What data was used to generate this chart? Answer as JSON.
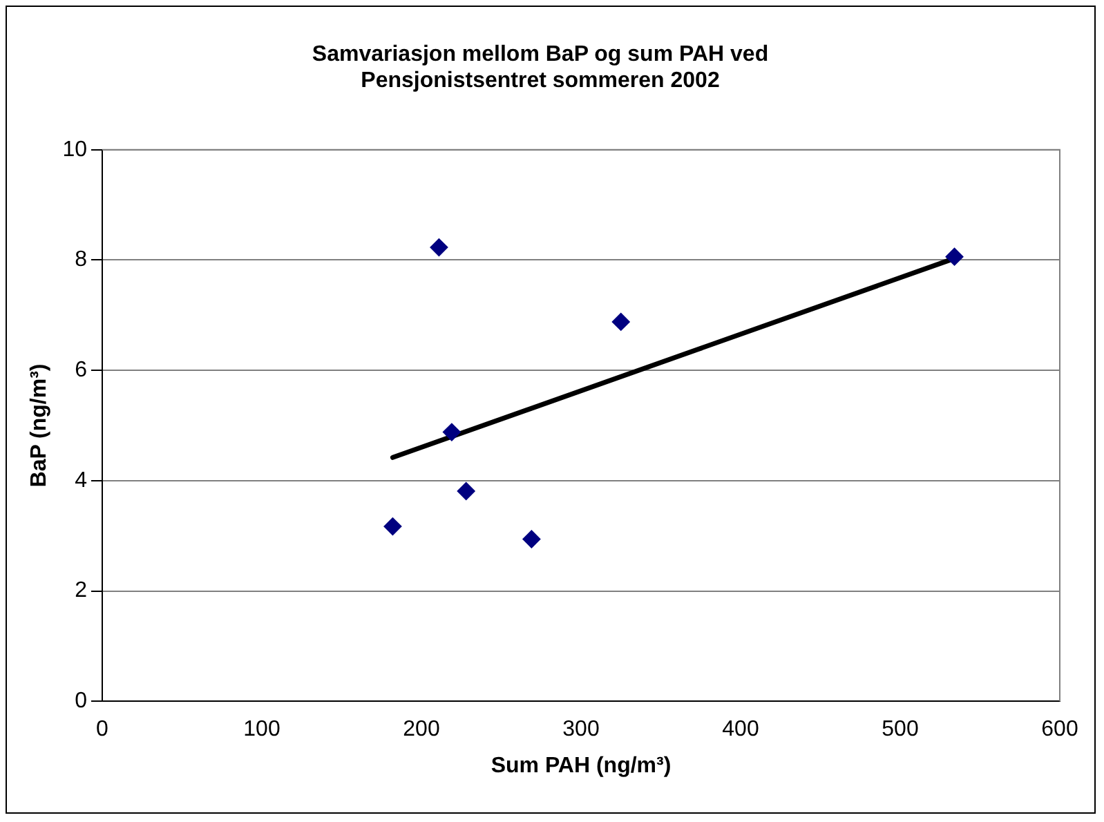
{
  "chart_data": {
    "type": "scatter",
    "title": "Samvariasjon mellom BaP og sum PAH ved Pensjonistsentret sommeren 2002",
    "xlabel": "Sum PAH (ng/m³)",
    "ylabel": "BaP (ng/m³)",
    "series": [
      {
        "color": "#000080",
        "marker": "diamond",
        "x": [
          182,
          211,
          219,
          228,
          269,
          325,
          534
        ],
        "values": [
          3.17,
          8.23,
          4.88,
          3.81,
          2.94,
          6.88,
          8.06
        ]
      },
      {
        "type": "line",
        "color": "#000000",
        "marker": "none",
        "x": [
          182,
          534
        ],
        "values": [
          4.42,
          8.03
        ]
      }
    ],
    "xlim": [
      0,
      600
    ],
    "xticks": [
      0,
      100,
      200,
      300,
      400,
      500,
      600
    ],
    "ylim": [
      0,
      10
    ],
    "yticks": [
      0,
      2,
      4,
      6,
      8,
      10
    ],
    "grid": "y",
    "legend": false
  }
}
